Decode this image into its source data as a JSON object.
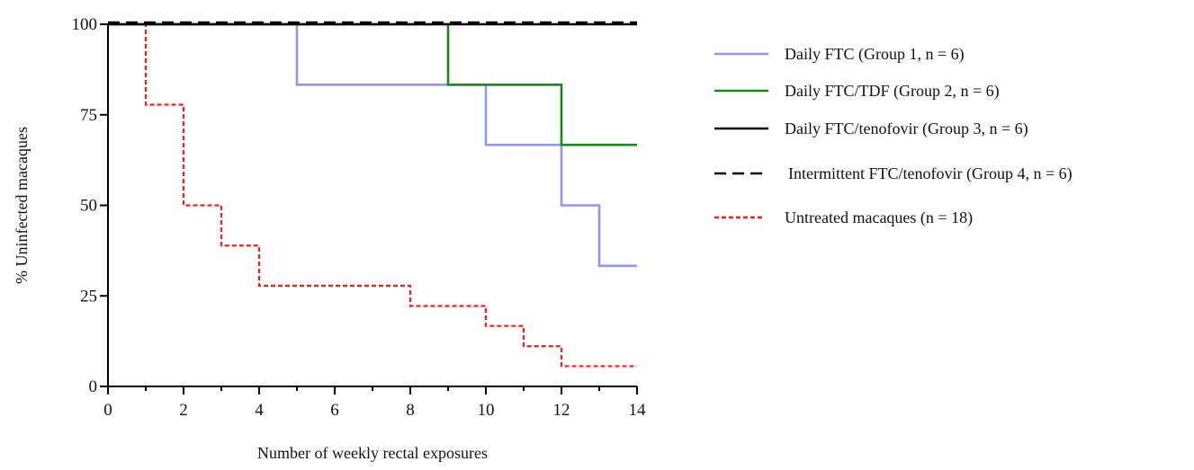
{
  "chart_data": {
    "type": "line",
    "step": true,
    "title": "",
    "xlabel": "Number of weekly rectal exposures",
    "ylabel": "% Uninfected macaques",
    "xlim": [
      0,
      14
    ],
    "ylim": [
      0,
      100
    ],
    "x_ticks": [
      "0",
      "2",
      "4",
      "6",
      "8",
      "10",
      "12",
      "14"
    ],
    "y_ticks": [
      "0",
      "25",
      "50",
      "75",
      "100"
    ],
    "grid": false,
    "legend_position": "right",
    "series": [
      {
        "name": "Daily FTC (Group 1, n = 6)",
        "color": "#8f96f0",
        "dash": "solid",
        "x": [
          0,
          5,
          10,
          12,
          13,
          14
        ],
        "y": [
          100,
          83.3,
          66.7,
          50,
          33.3,
          33.3
        ]
      },
      {
        "name": "Daily FTC/TDF (Group 2, n = 6)",
        "color": "#168a16",
        "dash": "solid",
        "x": [
          0,
          9,
          12,
          14
        ],
        "y": [
          100,
          83.3,
          66.7,
          66.7
        ]
      },
      {
        "name": "Daily FTC/tenofovir (Group 3, n = 6)",
        "color": "#000000",
        "dash": "solid",
        "x": [
          0,
          14
        ],
        "y": [
          100,
          100
        ]
      },
      {
        "name": "Intermittent FTC/tenofovir (Group 4, n = 6)",
        "color": "#000000",
        "dash": "dashed",
        "x": [
          0,
          14
        ],
        "y": [
          100,
          100
        ]
      },
      {
        "name": "Untreated macaques (n = 18)",
        "color": "#ff1a1a",
        "dash": "dotted",
        "x": [
          0,
          1,
          2,
          3,
          4,
          8,
          10,
          11,
          12,
          14
        ],
        "y": [
          100,
          77.8,
          50,
          38.9,
          27.8,
          22.2,
          16.7,
          11.1,
          5.6,
          5.6
        ]
      }
    ]
  }
}
